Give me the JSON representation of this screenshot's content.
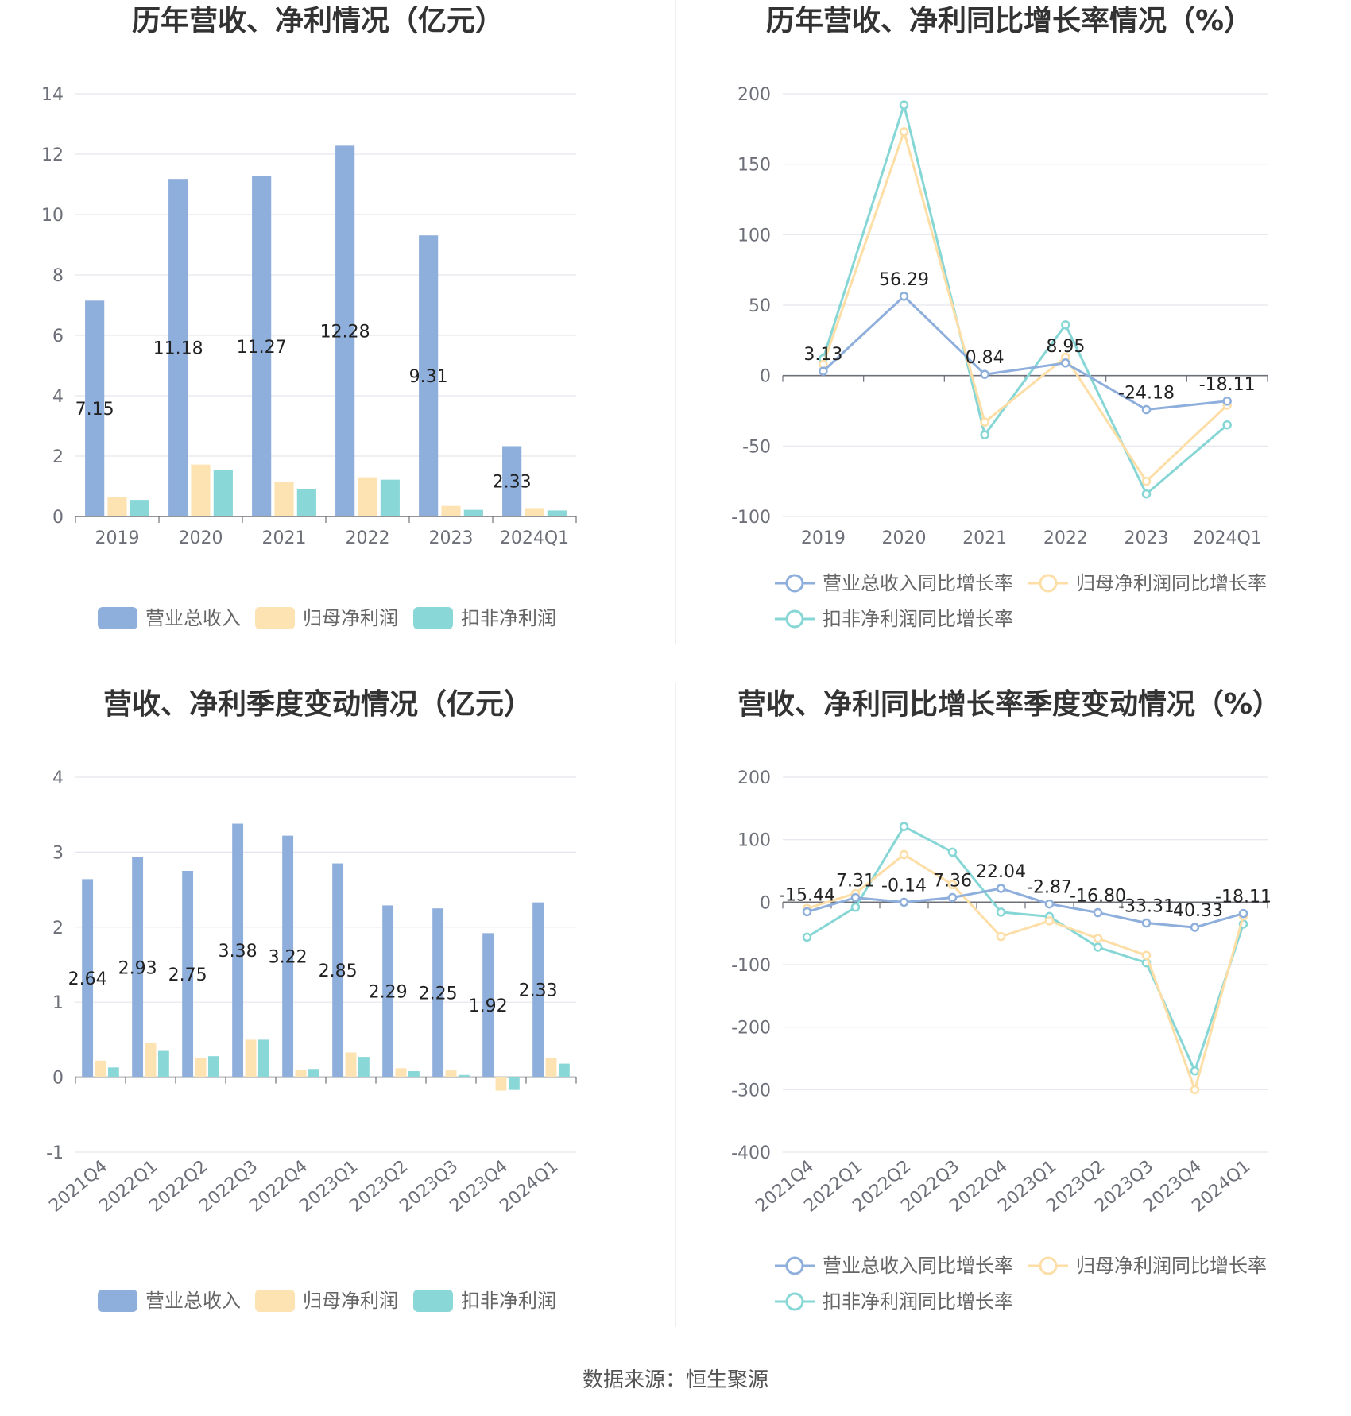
{
  "source_label": "数据来源：恒生聚源",
  "colors": {
    "revenue": "#8eaedc",
    "net_profit": "#fde3b2",
    "deducted_profit": "#8ad7d7",
    "revenue_line": "#8eaedc",
    "net_profit_line": "#fddea6",
    "deducted_line": "#86d6d6",
    "grid": "#e3e6ee",
    "axis": "#6e7079"
  },
  "chart_data": [
    {
      "id": "annual_values",
      "type": "bar",
      "title": "历年营收、净利情况（亿元）",
      "categories": [
        "2019",
        "2020",
        "2021",
        "2022",
        "2023",
        "2024Q1"
      ],
      "series": [
        {
          "name": "营业总收入",
          "values": [
            7.15,
            11.18,
            11.27,
            12.28,
            9.31,
            2.33
          ],
          "labels": [
            "7.15",
            "11.18",
            "11.27",
            "12.28",
            "9.31",
            "2.33"
          ]
        },
        {
          "name": "归母净利润",
          "values": [
            0.65,
            1.72,
            1.15,
            1.3,
            0.35,
            0.28
          ]
        },
        {
          "name": "扣非净利润",
          "values": [
            0.55,
            1.55,
            0.9,
            1.22,
            0.22,
            0.2
          ]
        }
      ],
      "ylim": [
        0,
        14
      ],
      "yticks": [
        "0",
        "2",
        "4",
        "6",
        "8",
        "10",
        "12",
        "14"
      ],
      "legend": "bottom"
    },
    {
      "id": "annual_growth",
      "type": "line",
      "title": "历年营收、净利同比增长率情况（%）",
      "categories": [
        "2019",
        "2020",
        "2021",
        "2022",
        "2023",
        "2024Q1"
      ],
      "series": [
        {
          "name": "营业总收入同比增长率",
          "values": [
            3.13,
            56.29,
            0.84,
            8.95,
            -24.18,
            -18.11
          ],
          "labels": [
            "3.13",
            "56.29",
            "0.84",
            "8.95",
            "-24.18",
            "-18.11"
          ]
        },
        {
          "name": "归母净利润同比增长率",
          "values": [
            8,
            173,
            -33,
            13,
            -75,
            -21
          ]
        },
        {
          "name": "扣非净利润同比增长率",
          "values": [
            12,
            192,
            -42,
            36,
            -84,
            -35
          ]
        }
      ],
      "ylim": [
        -100,
        200
      ],
      "yticks": [
        "-100",
        "-50",
        "0",
        "50",
        "100",
        "150",
        "200"
      ],
      "legend": "bottom"
    },
    {
      "id": "quarterly_values",
      "type": "bar",
      "title": "营收、净利季度变动情况（亿元）",
      "categories": [
        "2021Q4",
        "2022Q1",
        "2022Q2",
        "2022Q3",
        "2022Q4",
        "2023Q1",
        "2023Q2",
        "2023Q3",
        "2023Q4",
        "2024Q1"
      ],
      "series": [
        {
          "name": "营业总收入",
          "values": [
            2.64,
            2.93,
            2.75,
            3.38,
            3.22,
            2.85,
            2.29,
            2.25,
            1.92,
            2.33
          ],
          "labels": [
            "2.64",
            "2.93",
            "2.75",
            "3.38",
            "3.22",
            "2.85",
            "2.29",
            "2.25",
            "1.92",
            "2.33"
          ]
        },
        {
          "name": "归母净利润",
          "values": [
            0.22,
            0.46,
            0.26,
            0.5,
            0.1,
            0.33,
            0.12,
            0.09,
            -0.18,
            0.26
          ]
        },
        {
          "name": "扣非净利润",
          "values": [
            0.13,
            0.35,
            0.28,
            0.5,
            0.11,
            0.27,
            0.08,
            0.03,
            -0.17,
            0.18
          ]
        }
      ],
      "ylim": [
        -1,
        4
      ],
      "yticks": [
        "-1",
        "0",
        "1",
        "2",
        "3",
        "4"
      ],
      "legend": "bottom"
    },
    {
      "id": "quarterly_growth",
      "type": "line",
      "title": "营收、净利同比增长率季度变动情况（%）",
      "categories": [
        "2021Q4",
        "2022Q1",
        "2022Q2",
        "2022Q3",
        "2022Q4",
        "2023Q1",
        "2023Q2",
        "2023Q3",
        "2023Q4",
        "2024Q1"
      ],
      "series": [
        {
          "name": "营业总收入同比增长率",
          "values": [
            -15.44,
            7.31,
            -0.14,
            7.36,
            22.04,
            -2.87,
            -16.8,
            -33.31,
            -40.33,
            -18.11
          ],
          "labels": [
            "-15.44",
            "7.31",
            "-0.14",
            "7.36",
            "22.04",
            "-2.87",
            "-16.80",
            "-33.31",
            "-40.33",
            "-18.11"
          ]
        },
        {
          "name": "归母净利润同比增长率",
          "values": [
            -10,
            14,
            76,
            28,
            -55,
            -30,
            -58,
            -85,
            -300,
            -22
          ]
        },
        {
          "name": "扣非净利润同比增长率",
          "values": [
            -56,
            -8,
            121,
            80,
            -16,
            -23,
            -72,
            -97,
            -270,
            -35
          ]
        }
      ],
      "ylim": [
        -400,
        200
      ],
      "yticks": [
        "-400",
        "-300",
        "-200",
        "-100",
        "0",
        "100",
        "200"
      ],
      "legend": "bottom"
    }
  ]
}
